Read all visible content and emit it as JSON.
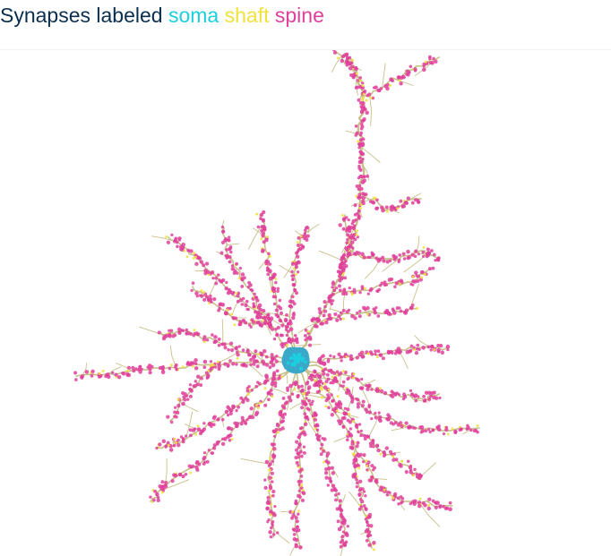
{
  "title": {
    "prefix": "Synapses labeled",
    "soma": "soma",
    "shaft": "shaft",
    "spine": "spine"
  },
  "colors": {
    "title_text": "#0b2f4f",
    "soma": "#1ccfe0",
    "shaft": "#f0e23c",
    "spine": "#e0409a",
    "dendrite": "#c8c08a",
    "soma_body": "#3aa8c8"
  },
  "image_content": "neuron morphology rendering with labeled synapse markers"
}
